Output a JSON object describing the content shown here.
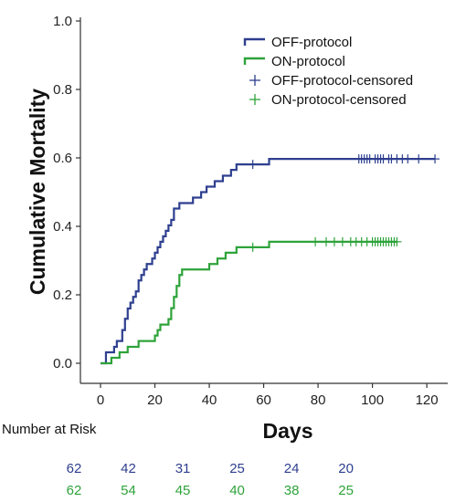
{
  "chart_data": {
    "type": "line",
    "subtype": "kaplan-meier-cumulative",
    "xlabel": "Days",
    "ylabel": "Cumulative Mortality",
    "xlim": [
      0,
      125
    ],
    "ylim": [
      0,
      1.0
    ],
    "x_ticks": [
      "0",
      "20",
      "40",
      "60",
      "80",
      "100",
      "120"
    ],
    "y_ticks": [
      "0.0",
      "0.2",
      "0.4",
      "0.6",
      "0.8",
      "1.0"
    ],
    "grid": false,
    "legend_position": "top-right",
    "legend": [
      {
        "label": "OFF-protocol",
        "kind": "line",
        "color": "#2e3f8f"
      },
      {
        "label": "ON-protocol",
        "kind": "line",
        "color": "#2ea33a"
      },
      {
        "label": "OFF-protocol-censored",
        "kind": "plus",
        "color": "#2e3f8f"
      },
      {
        "label": "ON-protocol-censored",
        "kind": "plus",
        "color": "#2ea33a"
      }
    ],
    "series": [
      {
        "name": "OFF-protocol",
        "color": "#2e3f8f",
        "steps": [
          [
            0,
            0.0
          ],
          [
            2,
            0.032
          ],
          [
            5,
            0.048
          ],
          [
            6,
            0.065
          ],
          [
            8,
            0.097
          ],
          [
            9,
            0.13
          ],
          [
            10,
            0.16
          ],
          [
            11,
            0.177
          ],
          [
            12,
            0.194
          ],
          [
            13,
            0.21
          ],
          [
            14,
            0.242
          ],
          [
            15,
            0.258
          ],
          [
            16,
            0.274
          ],
          [
            17,
            0.29
          ],
          [
            19,
            0.306
          ],
          [
            20,
            0.323
          ],
          [
            21,
            0.339
          ],
          [
            22,
            0.355
          ],
          [
            23,
            0.371
          ],
          [
            24,
            0.387
          ],
          [
            25,
            0.403
          ],
          [
            26,
            0.419
          ],
          [
            27,
            0.452
          ],
          [
            29,
            0.468
          ],
          [
            34,
            0.484
          ],
          [
            37,
            0.5
          ],
          [
            39,
            0.516
          ],
          [
            42,
            0.532
          ],
          [
            45,
            0.548
          ],
          [
            48,
            0.565
          ],
          [
            50,
            0.581
          ],
          [
            58,
            0.581
          ],
          [
            62,
            0.597
          ],
          [
            123,
            0.597
          ]
        ],
        "censored": [
          [
            56,
            0.581
          ],
          [
            95,
            0.597
          ],
          [
            96,
            0.597
          ],
          [
            97,
            0.597
          ],
          [
            98,
            0.597
          ],
          [
            99,
            0.597
          ],
          [
            101,
            0.597
          ],
          [
            102,
            0.597
          ],
          [
            103,
            0.597
          ],
          [
            104,
            0.597
          ],
          [
            106,
            0.597
          ],
          [
            107,
            0.597
          ],
          [
            109,
            0.597
          ],
          [
            111,
            0.597
          ],
          [
            113,
            0.597
          ],
          [
            117,
            0.597
          ],
          [
            123,
            0.597
          ]
        ]
      },
      {
        "name": "ON-protocol",
        "color": "#2ea33a",
        "steps": [
          [
            0,
            0.0
          ],
          [
            4,
            0.016
          ],
          [
            7,
            0.032
          ],
          [
            10,
            0.048
          ],
          [
            14,
            0.065
          ],
          [
            20,
            0.081
          ],
          [
            21,
            0.097
          ],
          [
            22,
            0.113
          ],
          [
            25,
            0.129
          ],
          [
            26,
            0.161
          ],
          [
            27,
            0.194
          ],
          [
            28,
            0.226
          ],
          [
            29,
            0.258
          ],
          [
            30,
            0.274
          ],
          [
            40,
            0.29
          ],
          [
            43,
            0.306
          ],
          [
            46,
            0.323
          ],
          [
            50,
            0.339
          ],
          [
            60,
            0.339
          ],
          [
            62,
            0.355
          ],
          [
            109,
            0.355
          ]
        ],
        "censored": [
          [
            56,
            0.339
          ],
          [
            79,
            0.355
          ],
          [
            83,
            0.355
          ],
          [
            86,
            0.355
          ],
          [
            89,
            0.355
          ],
          [
            92,
            0.355
          ],
          [
            94,
            0.355
          ],
          [
            96,
            0.355
          ],
          [
            98,
            0.355
          ],
          [
            100,
            0.355
          ],
          [
            101,
            0.355
          ],
          [
            102,
            0.355
          ],
          [
            103,
            0.355
          ],
          [
            104,
            0.355
          ],
          [
            105,
            0.355
          ],
          [
            106,
            0.355
          ],
          [
            107,
            0.355
          ],
          [
            108,
            0.355
          ],
          [
            109,
            0.355
          ]
        ]
      }
    ],
    "number_at_risk": {
      "title": "Number at Risk",
      "days": [
        0,
        20,
        40,
        60,
        80,
        100
      ],
      "rows": [
        {
          "name": "OFF-protocol",
          "color": "#2e3f8f",
          "values": [
            "62",
            "42",
            "31",
            "25",
            "24",
            "20"
          ]
        },
        {
          "name": "ON-protocol",
          "color": "#2ea33a",
          "values": [
            "62",
            "54",
            "45",
            "40",
            "38",
            "25"
          ]
        }
      ]
    }
  }
}
